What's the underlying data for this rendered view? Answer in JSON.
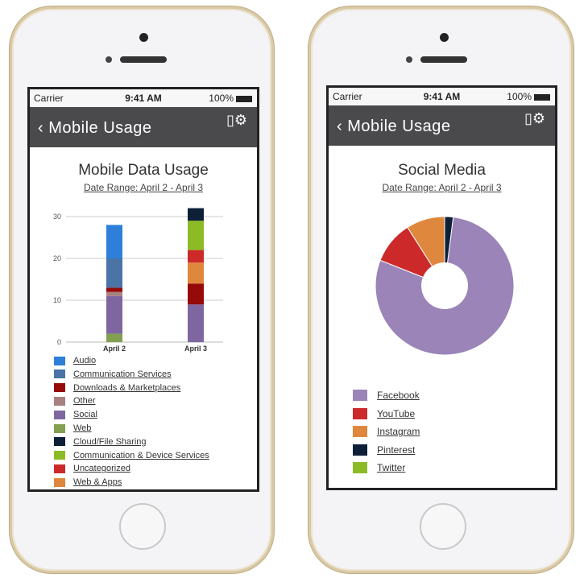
{
  "status": {
    "carrier": "Carrier",
    "time": "9:41 AM",
    "battery": "100%"
  },
  "nav": {
    "back_label": "Mobile Usage",
    "icon": "device-settings-icon"
  },
  "left": {
    "title": "Mobile Data Usage",
    "date_range": "Date Range: April 2 - April 3",
    "chart_data": {
      "type": "bar",
      "stacked": true,
      "categories": [
        "April 2",
        "April 3"
      ],
      "ylim": [
        0,
        30
      ],
      "yticks": [
        0,
        10,
        20,
        30
      ],
      "grid": true,
      "series": [
        {
          "name": "Audio",
          "color": "#2e7fd9",
          "values": [
            8,
            0
          ]
        },
        {
          "name": "Communication Services",
          "color": "#4a73a6",
          "values": [
            7,
            0
          ]
        },
        {
          "name": "Downloads & Marketplaces",
          "color": "#960a0a",
          "values": [
            1,
            5
          ]
        },
        {
          "name": "Other",
          "color": "#a88080",
          "values": [
            1,
            0
          ]
        },
        {
          "name": "Social",
          "color": "#7e67a0",
          "values": [
            9,
            9
          ]
        },
        {
          "name": "Web",
          "color": "#83a050",
          "values": [
            2,
            0
          ]
        },
        {
          "name": "Cloud/File Sharing",
          "color": "#0e2038",
          "values": [
            0,
            3
          ]
        },
        {
          "name": "Communication & Device Services",
          "color": "#8dbb25",
          "values": [
            0,
            7
          ]
        },
        {
          "name": "Uncategorized",
          "color": "#cc2a2a",
          "values": [
            0,
            3
          ]
        },
        {
          "name": "Web & Apps",
          "color": "#e0873e",
          "values": [
            0,
            5
          ]
        }
      ],
      "stack_order": [
        "Web",
        "Social",
        "Other",
        "Downloads & Marketplaces",
        "Communication Services",
        "Audio",
        "Web & Apps",
        "Uncategorized",
        "Communication & Device Services",
        "Cloud/File Sharing"
      ]
    }
  },
  "right": {
    "title": "Social Media",
    "date_range": "Date Range: April 2 - April 3",
    "chart_data": {
      "type": "pie",
      "donut": true,
      "slices": [
        {
          "name": "Facebook",
          "color": "#9a84b8",
          "value": 79
        },
        {
          "name": "YouTube",
          "color": "#cc2a2a",
          "value": 10
        },
        {
          "name": "Instagram",
          "color": "#e0873e",
          "value": 9
        },
        {
          "name": "Pinterest",
          "color": "#0e2038",
          "value": 2
        },
        {
          "name": "Twitter",
          "color": "#8dbb25",
          "value": 0
        }
      ]
    }
  }
}
